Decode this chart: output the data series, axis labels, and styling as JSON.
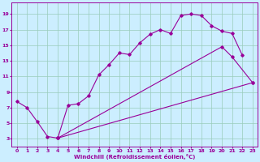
{
  "xlabel": "Windchill (Refroidissement éolien,°C)",
  "background_color": "#cceeff",
  "line_color": "#990099",
  "grid_color": "#99ccbb",
  "xlim": [
    -0.5,
    23.5
  ],
  "ylim": [
    2.0,
    20.5
  ],
  "xticks": [
    0,
    1,
    2,
    3,
    4,
    5,
    6,
    7,
    8,
    9,
    10,
    11,
    12,
    13,
    14,
    15,
    16,
    17,
    18,
    19,
    20,
    21,
    22,
    23
  ],
  "yticks": [
    3,
    5,
    7,
    9,
    11,
    13,
    15,
    17,
    19
  ],
  "lines": [
    {
      "x": [
        0,
        1,
        2,
        3,
        4,
        5,
        6,
        7,
        8,
        9,
        10,
        11,
        12,
        13,
        14,
        15,
        16,
        17,
        18,
        19,
        20,
        21,
        22
      ],
      "y": [
        7.8,
        7.0,
        5.2,
        3.3,
        3.1,
        7.3,
        7.5,
        8.5,
        11.2,
        12.5,
        14.0,
        13.8,
        15.3,
        16.4,
        17.0,
        16.5,
        18.8,
        19.0,
        18.8,
        17.5,
        16.8,
        16.5,
        13.7
      ]
    },
    {
      "x": [
        4,
        20,
        21,
        23
      ],
      "y": [
        3.1,
        14.8,
        13.5,
        10.2
      ]
    },
    {
      "x": [
        4,
        23
      ],
      "y": [
        3.1,
        10.2
      ]
    }
  ],
  "xlabel_fontsize": 5.0,
  "tick_fontsize": 4.5
}
